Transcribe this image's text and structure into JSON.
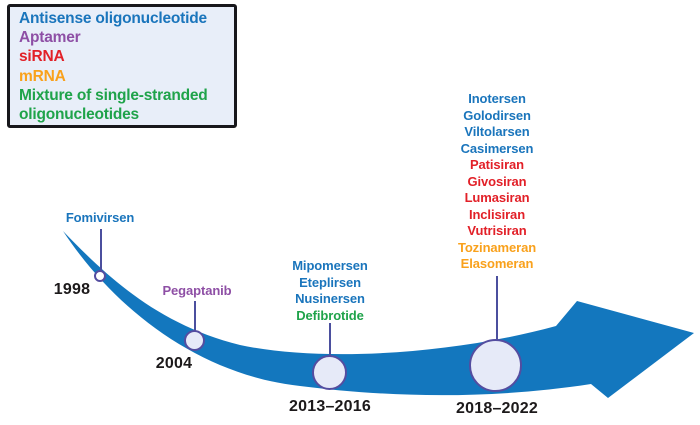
{
  "legend": {
    "items": [
      {
        "label": "Antisense oligonucleotide",
        "color": "#1a75bc"
      },
      {
        "label": "Aptamer",
        "color": "#8e4fa5"
      },
      {
        "label": "siRNA",
        "color": "#e22028"
      },
      {
        "label": "mRNA",
        "color": "#f9a11c"
      },
      {
        "label": "Mixture of single-stranded oligonucleotides",
        "color": "#1fa34a"
      }
    ]
  },
  "timeline": {
    "milestones": [
      {
        "year": "1998",
        "drugs": [
          {
            "name": "Fomivirsen",
            "category": "Antisense oligonucleotide",
            "color": "#1a75bc"
          }
        ]
      },
      {
        "year": "2004",
        "drugs": [
          {
            "name": "Pegaptanib",
            "category": "Aptamer",
            "color": "#8e4fa5"
          }
        ]
      },
      {
        "year": "2013–2016",
        "drugs": [
          {
            "name": "Mipomersen",
            "category": "Antisense oligonucleotide",
            "color": "#1a75bc"
          },
          {
            "name": "Eteplirsen",
            "category": "Antisense oligonucleotide",
            "color": "#1a75bc"
          },
          {
            "name": "Nusinersen",
            "category": "Antisense oligonucleotide",
            "color": "#1a75bc"
          },
          {
            "name": "Defibrotide",
            "category": "Mixture of single-stranded oligonucleotides",
            "color": "#1fa34a"
          }
        ]
      },
      {
        "year": "2018–2022",
        "drugs": [
          {
            "name": "Inotersen",
            "category": "Antisense oligonucleotide",
            "color": "#1a75bc"
          },
          {
            "name": "Golodirsen",
            "category": "Antisense oligonucleotide",
            "color": "#1a75bc"
          },
          {
            "name": "Viltolarsen",
            "category": "Antisense oligonucleotide",
            "color": "#1a75bc"
          },
          {
            "name": "Casimersen",
            "category": "Antisense oligonucleotide",
            "color": "#1a75bc"
          },
          {
            "name": "Patisiran",
            "category": "siRNA",
            "color": "#e22028"
          },
          {
            "name": "Givosiran",
            "category": "siRNA",
            "color": "#e22028"
          },
          {
            "name": "Lumasiran",
            "category": "siRNA",
            "color": "#e22028"
          },
          {
            "name": "Inclisiran",
            "category": "siRNA",
            "color": "#e22028"
          },
          {
            "name": "Vutrisiran",
            "category": "siRNA",
            "color": "#e22028"
          },
          {
            "name": "Tozinameran",
            "category": "mRNA",
            "color": "#f9a11c"
          },
          {
            "name": "Elasomeran",
            "category": "mRNA",
            "color": "#f9a11c"
          }
        ]
      }
    ]
  },
  "colors": {
    "arrow": "#1377be",
    "connector": "#4b4f9e",
    "circle_border": "#544da0",
    "circle_fill": "#e6eaf8",
    "circle_fill_small": "#ffffff",
    "legend_background": "#e8eef9",
    "year_text": "#1c191a"
  }
}
